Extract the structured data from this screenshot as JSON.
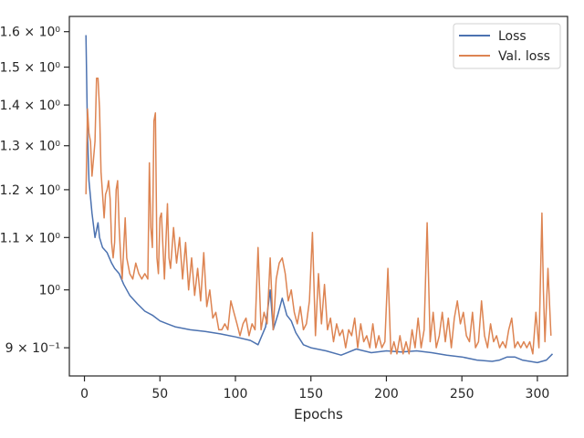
{
  "chart_data": {
    "type": "line",
    "title": "",
    "xlabel": "Epochs",
    "ylabel": "",
    "xlim": [
      -10,
      320
    ],
    "ylim": [
      0.855,
      1.645
    ],
    "y_scale": "log",
    "grid": false,
    "legend_position": "top-right",
    "x_ticks": [
      {
        "value": 0,
        "label": "0"
      },
      {
        "value": 50,
        "label": "50"
      },
      {
        "value": 100,
        "label": "100"
      },
      {
        "value": 150,
        "label": "150"
      },
      {
        "value": 200,
        "label": "200"
      },
      {
        "value": 250,
        "label": "250"
      },
      {
        "value": 300,
        "label": "300"
      }
    ],
    "y_ticks": [
      {
        "value": 0.9,
        "label": "9 × 10⁻¹"
      },
      {
        "value": 1.0,
        "label": "10⁰"
      },
      {
        "value": 1.1,
        "label": "1.1 × 10⁰"
      },
      {
        "value": 1.2,
        "label": "1.2 × 10⁰"
      },
      {
        "value": 1.3,
        "label": "1.3 × 10⁰"
      },
      {
        "value": 1.4,
        "label": "1.4 × 10⁰"
      },
      {
        "value": 1.5,
        "label": "1.5 × 10⁰"
      },
      {
        "value": 1.6,
        "label": "1.6 × 10⁰"
      }
    ],
    "series": [
      {
        "name": "Loss",
        "color": "#4c72b0",
        "points": [
          [
            1,
            1.59
          ],
          [
            2,
            1.33
          ],
          [
            3,
            1.22
          ],
          [
            5,
            1.15
          ],
          [
            7,
            1.1
          ],
          [
            9,
            1.13
          ],
          [
            10,
            1.1
          ],
          [
            12,
            1.08
          ],
          [
            15,
            1.07
          ],
          [
            18,
            1.05
          ],
          [
            20,
            1.04
          ],
          [
            23,
            1.03
          ],
          [
            26,
            1.01
          ],
          [
            30,
            0.99
          ],
          [
            35,
            0.975
          ],
          [
            40,
            0.962
          ],
          [
            45,
            0.955
          ],
          [
            50,
            0.945
          ],
          [
            55,
            0.94
          ],
          [
            60,
            0.935
          ],
          [
            70,
            0.93
          ],
          [
            80,
            0.927
          ],
          [
            90,
            0.923
          ],
          [
            100,
            0.918
          ],
          [
            110,
            0.912
          ],
          [
            115,
            0.905
          ],
          [
            120,
            0.935
          ],
          [
            123,
            1.0
          ],
          [
            125,
            0.93
          ],
          [
            128,
            0.955
          ],
          [
            131,
            0.985
          ],
          [
            134,
            0.955
          ],
          [
            137,
            0.945
          ],
          [
            140,
            0.925
          ],
          [
            145,
            0.905
          ],
          [
            150,
            0.9
          ],
          [
            160,
            0.895
          ],
          [
            170,
            0.888
          ],
          [
            180,
            0.898
          ],
          [
            190,
            0.892
          ],
          [
            200,
            0.895
          ],
          [
            210,
            0.893
          ],
          [
            220,
            0.895
          ],
          [
            230,
            0.892
          ],
          [
            240,
            0.888
          ],
          [
            250,
            0.885
          ],
          [
            260,
            0.88
          ],
          [
            270,
            0.878
          ],
          [
            275,
            0.88
          ],
          [
            280,
            0.885
          ],
          [
            285,
            0.885
          ],
          [
            290,
            0.88
          ],
          [
            300,
            0.876
          ],
          [
            306,
            0.88
          ],
          [
            310,
            0.89
          ]
        ]
      },
      {
        "name": "Val. loss",
        "color": "#dd8452",
        "points": [
          [
            1,
            1.19
          ],
          [
            2,
            1.39
          ],
          [
            3,
            1.33
          ],
          [
            4,
            1.31
          ],
          [
            5,
            1.23
          ],
          [
            6,
            1.27
          ],
          [
            7,
            1.31
          ],
          [
            8,
            1.47
          ],
          [
            9,
            1.47
          ],
          [
            10,
            1.39
          ],
          [
            11,
            1.24
          ],
          [
            12,
            1.19
          ],
          [
            13,
            1.14
          ],
          [
            14,
            1.19
          ],
          [
            15,
            1.2
          ],
          [
            16,
            1.22
          ],
          [
            17,
            1.18
          ],
          [
            18,
            1.09
          ],
          [
            19,
            1.06
          ],
          [
            20,
            1.09
          ],
          [
            21,
            1.2
          ],
          [
            22,
            1.22
          ],
          [
            23,
            1.12
          ],
          [
            24,
            1.06
          ],
          [
            25,
            1.02
          ],
          [
            26,
            1.08
          ],
          [
            27,
            1.14
          ],
          [
            28,
            1.06
          ],
          [
            30,
            1.03
          ],
          [
            32,
            1.02
          ],
          [
            34,
            1.05
          ],
          [
            36,
            1.03
          ],
          [
            38,
            1.02
          ],
          [
            40,
            1.03
          ],
          [
            42,
            1.02
          ],
          [
            43,
            1.26
          ],
          [
            44,
            1.12
          ],
          [
            45,
            1.08
          ],
          [
            46,
            1.36
          ],
          [
            47,
            1.38
          ],
          [
            48,
            1.06
          ],
          [
            49,
            1.03
          ],
          [
            50,
            1.14
          ],
          [
            51,
            1.15
          ],
          [
            52,
            1.08
          ],
          [
            53,
            1.02
          ],
          [
            55,
            1.17
          ],
          [
            56,
            1.06
          ],
          [
            57,
            1.04
          ],
          [
            59,
            1.12
          ],
          [
            61,
            1.05
          ],
          [
            63,
            1.1
          ],
          [
            65,
            1.02
          ],
          [
            67,
            1.09
          ],
          [
            69,
            1.0
          ],
          [
            71,
            1.06
          ],
          [
            73,
            0.99
          ],
          [
            75,
            1.04
          ],
          [
            77,
            0.98
          ],
          [
            79,
            1.07
          ],
          [
            81,
            0.97
          ],
          [
            83,
            1.0
          ],
          [
            85,
            0.95
          ],
          [
            87,
            0.96
          ],
          [
            89,
            0.93
          ],
          [
            91,
            0.93
          ],
          [
            93,
            0.94
          ],
          [
            95,
            0.93
          ],
          [
            97,
            0.98
          ],
          [
            99,
            0.96
          ],
          [
            101,
            0.94
          ],
          [
            103,
            0.92
          ],
          [
            105,
            0.94
          ],
          [
            107,
            0.95
          ],
          [
            109,
            0.92
          ],
          [
            111,
            0.94
          ],
          [
            113,
            0.93
          ],
          [
            115,
            1.08
          ],
          [
            117,
            0.93
          ],
          [
            119,
            0.96
          ],
          [
            121,
            0.94
          ],
          [
            123,
            1.06
          ],
          [
            125,
            0.93
          ],
          [
            127,
            1.02
          ],
          [
            129,
            1.05
          ],
          [
            131,
            1.06
          ],
          [
            133,
            1.03
          ],
          [
            135,
            0.98
          ],
          [
            137,
            1.0
          ],
          [
            139,
            0.96
          ],
          [
            141,
            0.94
          ],
          [
            143,
            0.97
          ],
          [
            145,
            0.93
          ],
          [
            147,
            0.94
          ],
          [
            149,
            0.98
          ],
          [
            151,
            1.11
          ],
          [
            153,
            0.92
          ],
          [
            155,
            1.03
          ],
          [
            157,
            0.94
          ],
          [
            159,
            1.01
          ],
          [
            161,
            0.93
          ],
          [
            163,
            0.95
          ],
          [
            165,
            0.91
          ],
          [
            167,
            0.94
          ],
          [
            169,
            0.92
          ],
          [
            171,
            0.93
          ],
          [
            173,
            0.9
          ],
          [
            175,
            0.93
          ],
          [
            177,
            0.92
          ],
          [
            179,
            0.95
          ],
          [
            181,
            0.9
          ],
          [
            183,
            0.94
          ],
          [
            185,
            0.91
          ],
          [
            187,
            0.92
          ],
          [
            189,
            0.9
          ],
          [
            191,
            0.94
          ],
          [
            193,
            0.9
          ],
          [
            195,
            0.92
          ],
          [
            197,
            0.9
          ],
          [
            199,
            0.91
          ],
          [
            201,
            1.04
          ],
          [
            203,
            0.89
          ],
          [
            205,
            0.91
          ],
          [
            207,
            0.89
          ],
          [
            209,
            0.92
          ],
          [
            211,
            0.89
          ],
          [
            213,
            0.91
          ],
          [
            215,
            0.89
          ],
          [
            217,
            0.93
          ],
          [
            219,
            0.9
          ],
          [
            221,
            0.95
          ],
          [
            223,
            0.9
          ],
          [
            225,
            0.93
          ],
          [
            227,
            1.13
          ],
          [
            229,
            0.91
          ],
          [
            231,
            0.96
          ],
          [
            233,
            0.9
          ],
          [
            235,
            0.92
          ],
          [
            237,
            0.96
          ],
          [
            239,
            0.91
          ],
          [
            241,
            0.95
          ],
          [
            243,
            0.9
          ],
          [
            245,
            0.95
          ],
          [
            247,
            0.98
          ],
          [
            249,
            0.94
          ],
          [
            251,
            0.96
          ],
          [
            253,
            0.92
          ],
          [
            255,
            0.91
          ],
          [
            257,
            0.96
          ],
          [
            259,
            0.9
          ],
          [
            261,
            0.91
          ],
          [
            263,
            0.98
          ],
          [
            265,
            0.92
          ],
          [
            267,
            0.9
          ],
          [
            269,
            0.94
          ],
          [
            271,
            0.91
          ],
          [
            273,
            0.92
          ],
          [
            275,
            0.9
          ],
          [
            277,
            0.91
          ],
          [
            279,
            0.9
          ],
          [
            281,
            0.93
          ],
          [
            283,
            0.95
          ],
          [
            285,
            0.9
          ],
          [
            287,
            0.91
          ],
          [
            289,
            0.9
          ],
          [
            291,
            0.91
          ],
          [
            293,
            0.9
          ],
          [
            295,
            0.91
          ],
          [
            297,
            0.89
          ],
          [
            299,
            0.96
          ],
          [
            301,
            0.9
          ],
          [
            303,
            1.15
          ],
          [
            304,
            1.0
          ],
          [
            305,
            0.91
          ],
          [
            307,
            1.04
          ],
          [
            309,
            0.92
          ]
        ]
      }
    ]
  }
}
